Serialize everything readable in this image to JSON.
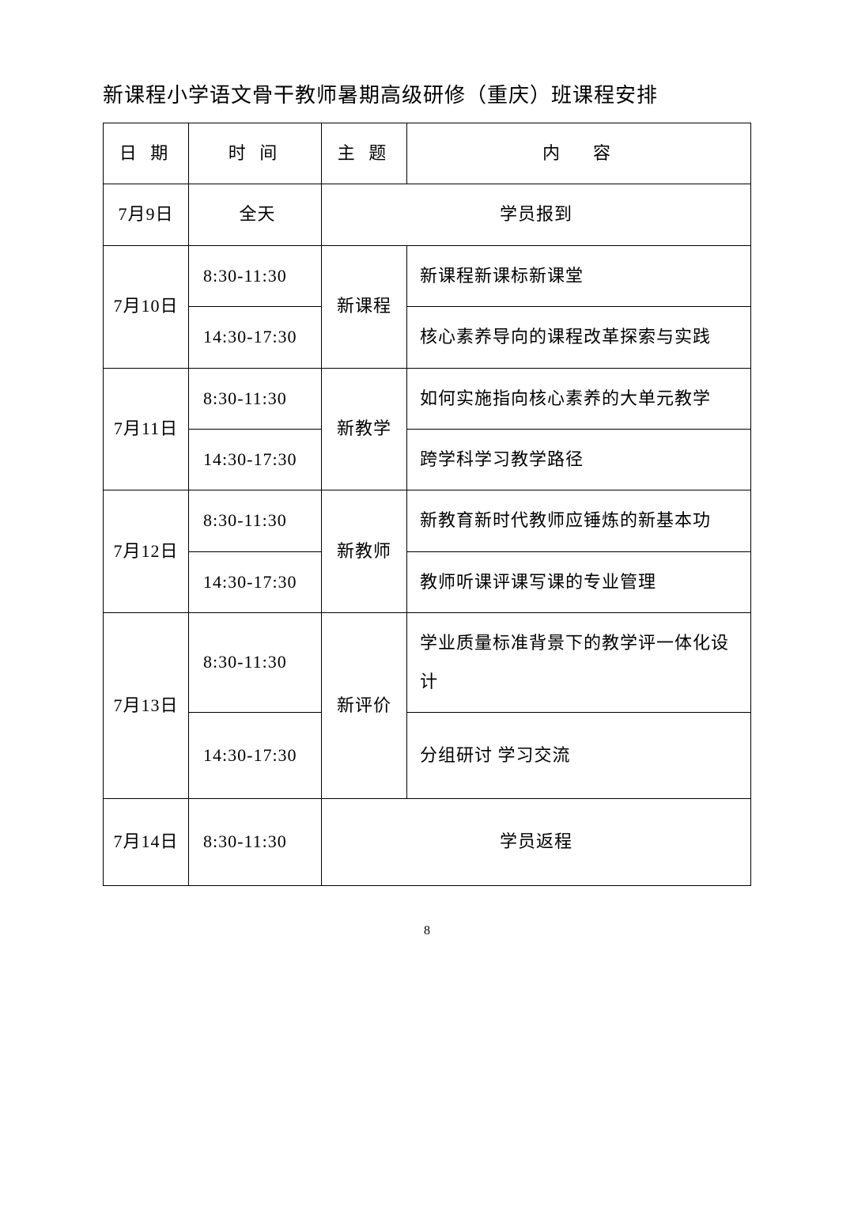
{
  "title": "新课程小学语文骨干教师暑期高级研修（重庆）班课程安排",
  "headers": {
    "date": "日 期",
    "time": "时 间",
    "topic": "主 题",
    "content": "内　容"
  },
  "rows": {
    "r1": {
      "date": "7月9日",
      "time": "全天",
      "merged": "学员报到"
    },
    "r2": {
      "date": "7月10日",
      "time1": "8:30-11:30",
      "time2": "14:30-17:30",
      "topic": "新课程",
      "content1": "新课程新课标新课堂",
      "content2": "核心素养导向的课程改革探索与实践"
    },
    "r3": {
      "date": "7月11日",
      "time1": "8:30-11:30",
      "time2": "14:30-17:30",
      "topic": "新教学",
      "content1": "如何实施指向核心素养的大单元教学",
      "content2": "跨学科学习教学路径"
    },
    "r4": {
      "date": "7月12日",
      "time1": "8:30-11:30",
      "time2": "14:30-17:30",
      "topic": "新教师",
      "content1": "新教育新时代教师应锤炼的新基本功",
      "content2": "教师听课评课写课的专业管理"
    },
    "r5": {
      "date": "7月13日",
      "time1": "8:30-11:30",
      "time2": "14:30-17:30",
      "topic": "新评价",
      "content1": "学业质量标准背景下的教学评一体化设计",
      "content2": "分组研讨 学习交流"
    },
    "r6": {
      "date": "7月14日",
      "time": "8:30-11:30",
      "merged": "学员返程"
    }
  },
  "pageNumber": "8",
  "styling": {
    "border_color": "#000000",
    "background_color": "#ffffff",
    "text_color": "#000000",
    "font_family": "SimSun",
    "title_fontsize": 26,
    "cell_fontsize": 22,
    "col_widths": {
      "date": 108,
      "time": 168,
      "topic": 108,
      "content": "auto"
    }
  }
}
